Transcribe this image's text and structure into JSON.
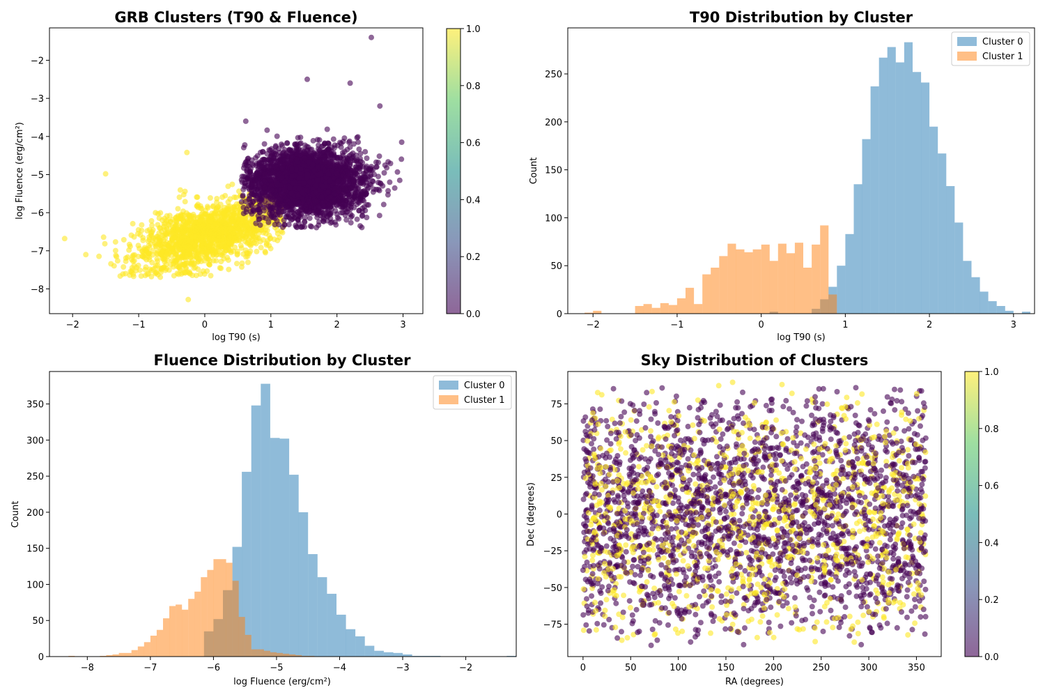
{
  "colors": {
    "viridis_low": "#440154",
    "viridis_mid": "#21918c",
    "viridis_high": "#fde725",
    "cluster0": "#1f77b4",
    "cluster1": "#ff7f0e"
  },
  "chart_data": [
    {
      "type": "scatter",
      "title": "GRB Clusters (T90 & Fluence)",
      "xlabel": "log T90 (s)",
      "ylabel": "log Fluence (erg/cm²)",
      "xlim": [
        -2.35,
        3.3
      ],
      "ylim": [
        -8.65,
        -1.15
      ],
      "xticks": [
        -2,
        -1,
        0,
        1,
        2,
        3
      ],
      "yticks": [
        -8,
        -7,
        -6,
        -5,
        -4,
        -3,
        -2
      ],
      "colorbar": {
        "min": 0.0,
        "max": 1.0,
        "ticks": [
          "0.0",
          "0.2",
          "0.4",
          "0.6",
          "0.8",
          "1.0"
        ]
      },
      "series": [
        {
          "cluster": 0,
          "center": [
            1.55,
            -5.2
          ],
          "spread": [
            0.42,
            0.42
          ],
          "count": 3500,
          "color_value": 0,
          "outliers": [
            [
              2.52,
              -1.4
            ],
            [
              1.55,
              -2.5
            ],
            [
              2.2,
              -2.6
            ],
            [
              2.65,
              -3.2
            ],
            [
              2.98,
              -4.15
            ],
            [
              0.62,
              -3.6
            ],
            [
              2.95,
              -5.15
            ],
            [
              1.6,
              -6.35
            ]
          ]
        },
        {
          "cluster": 1,
          "center": [
            0.05,
            -6.55
          ],
          "spread": [
            0.55,
            0.42
          ],
          "count": 1500,
          "color_value": 1,
          "outliers": [
            [
              -2.12,
              -6.68
            ],
            [
              -1.8,
              -7.1
            ],
            [
              -1.5,
              -4.98
            ],
            [
              -0.25,
              -8.28
            ],
            [
              -0.27,
              -4.42
            ],
            [
              -1.2,
              -7.6
            ],
            [
              -0.9,
              -7.65
            ]
          ]
        }
      ]
    },
    {
      "type": "histogram",
      "title": "T90 Distribution by Cluster",
      "xlabel": "log T90 (s)",
      "ylabel": "Count",
      "xlim": [
        -2.3,
        3.25
      ],
      "ylim": [
        0,
        298
      ],
      "xticks": [
        -2,
        -1,
        0,
        1,
        2,
        3
      ],
      "yticks": [
        0,
        50,
        100,
        150,
        200,
        250
      ],
      "legend": [
        "Cluster 0",
        "Cluster 1"
      ],
      "legend_position": "upper right",
      "series": [
        {
          "name": "Cluster 0",
          "start": 0.1,
          "width": 0.1,
          "counts": [
            2,
            0,
            0,
            0,
            0,
            5,
            15,
            28,
            50,
            83,
            135,
            182,
            237,
            267,
            278,
            262,
            283,
            252,
            241,
            195,
            167,
            133,
            95,
            55,
            38,
            23,
            13,
            8,
            3,
            0,
            2
          ]
        },
        {
          "name": "Cluster 1",
          "start": -2.1,
          "width": 0.1,
          "counts": [
            1,
            3,
            0,
            0,
            0,
            0,
            8,
            10,
            6,
            11,
            9,
            16,
            27,
            10,
            41,
            48,
            60,
            73,
            67,
            64,
            67,
            72,
            55,
            73,
            63,
            74,
            48,
            72,
            92,
            20
          ]
        }
      ]
    },
    {
      "type": "histogram",
      "title": "Fluence Distribution by Cluster",
      "xlabel": "log Fluence (erg/cm²)",
      "ylabel": "Count",
      "xlim": [
        -8.6,
        -1.2
      ],
      "ylim": [
        0,
        395
      ],
      "xticks": [
        -8,
        -7,
        -6,
        -5,
        -4,
        -3,
        -2
      ],
      "xtick_labels": [
        "−8",
        "−7",
        "−6",
        "−5",
        "−4",
        "−3",
        "−2"
      ],
      "yticks": [
        0,
        50,
        100,
        150,
        200,
        250,
        300,
        350
      ],
      "legend": [
        "Cluster 0",
        "Cluster 1"
      ],
      "legend_position": "upper right",
      "series": [
        {
          "name": "Cluster 0",
          "start": -6.15,
          "width": 0.15,
          "counts": [
            35,
            52,
            92,
            152,
            256,
            348,
            378,
            303,
            302,
            252,
            200,
            142,
            110,
            87,
            58,
            38,
            28,
            15,
            8,
            6,
            5,
            3,
            1,
            1,
            1,
            0,
            0,
            0,
            0,
            0,
            0,
            0,
            1
          ]
        },
        {
          "name": "Cluster 1",
          "start": -8.3,
          "width": 0.1,
          "counts": [
            1,
            0,
            0,
            0,
            0,
            1,
            2,
            3,
            5,
            5,
            9,
            14,
            20,
            29,
            37,
            53,
            70,
            72,
            65,
            80,
            90,
            110,
            120,
            135,
            135,
            130,
            105,
            55,
            30,
            10,
            10,
            8,
            6,
            5,
            4,
            3,
            2,
            1,
            1
          ]
        }
      ]
    },
    {
      "type": "scatter",
      "title": "Sky Distribution of Clusters",
      "xlabel": "RA (degrees)",
      "ylabel": "Dec (degrees)",
      "xlim": [
        -16,
        376
      ],
      "ylim": [
        -97,
        97
      ],
      "xticks": [
        0,
        50,
        100,
        150,
        200,
        250,
        300,
        350
      ],
      "yticks": [
        -75,
        -50,
        -25,
        0,
        25,
        50,
        75
      ],
      "colorbar": {
        "min": 0.0,
        "max": 1.0,
        "ticks": [
          "0.0",
          "0.2",
          "0.4",
          "0.6",
          "0.8",
          "1.0"
        ]
      },
      "series": [
        {
          "cluster": 0,
          "ra_range": [
            0,
            360
          ],
          "dec_range": [
            -90,
            90
          ],
          "count": 2200,
          "color_value": 0
        },
        {
          "cluster": 1,
          "ra_range": [
            0,
            360
          ],
          "dec_range": [
            -90,
            90
          ],
          "count": 1100,
          "color_value": 1
        }
      ]
    }
  ]
}
